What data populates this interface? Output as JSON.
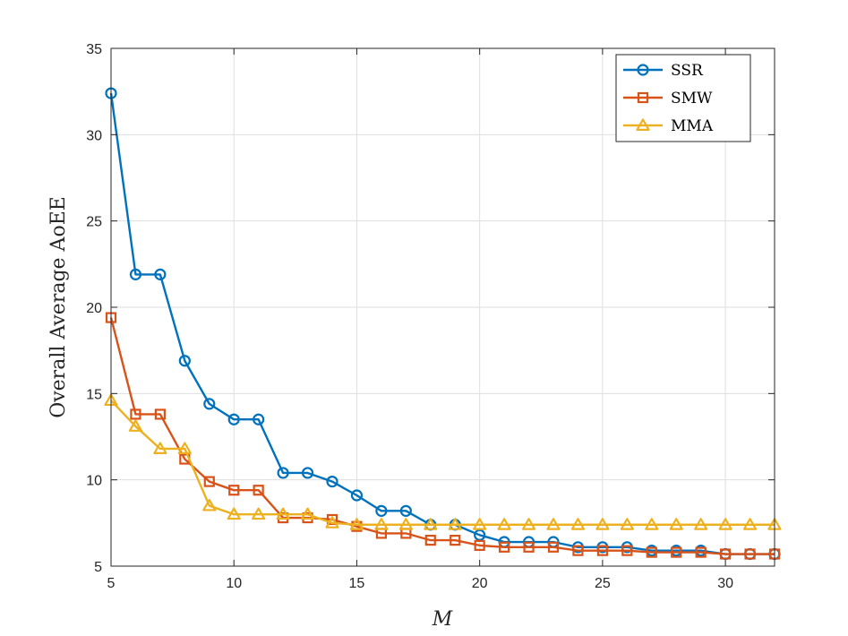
{
  "chart_data": {
    "type": "line",
    "title": "",
    "xlabel": "M",
    "ylabel": "Overall Average AoEE",
    "xlim": [
      5,
      32
    ],
    "ylim": [
      5,
      35
    ],
    "xticks": [
      5,
      10,
      15,
      20,
      25,
      30
    ],
    "yticks": [
      5,
      10,
      15,
      20,
      25,
      30,
      35
    ],
    "grid": true,
    "legend_position": "top-right",
    "x": [
      5,
      6,
      7,
      8,
      9,
      10,
      11,
      12,
      13,
      14,
      15,
      16,
      17,
      18,
      19,
      20,
      21,
      22,
      23,
      24,
      25,
      26,
      27,
      28,
      29,
      30,
      31,
      32
    ],
    "series": [
      {
        "name": "SSR",
        "color": "#0072BD",
        "marker": "circle",
        "values": [
          32.4,
          21.9,
          21.9,
          16.9,
          14.4,
          13.5,
          13.5,
          10.4,
          10.4,
          9.9,
          9.1,
          8.2,
          8.2,
          7.4,
          7.4,
          6.8,
          6.4,
          6.4,
          6.4,
          6.1,
          6.1,
          6.1,
          5.9,
          5.9,
          5.9,
          5.7,
          5.7,
          5.7
        ]
      },
      {
        "name": "SMW",
        "color": "#D95319",
        "marker": "square",
        "values": [
          19.4,
          13.8,
          13.8,
          11.2,
          9.9,
          9.4,
          9.4,
          7.8,
          7.8,
          7.7,
          7.3,
          6.9,
          6.9,
          6.5,
          6.5,
          6.2,
          6.1,
          6.1,
          6.1,
          5.9,
          5.9,
          5.9,
          5.8,
          5.8,
          5.8,
          5.7,
          5.7,
          5.7
        ]
      },
      {
        "name": "MMA",
        "color": "#EDB120",
        "marker": "triangle",
        "values": [
          14.6,
          13.1,
          11.8,
          11.8,
          8.5,
          8.0,
          8.0,
          8.0,
          8.0,
          7.5,
          7.4,
          7.4,
          7.4,
          7.4,
          7.4,
          7.4,
          7.4,
          7.4,
          7.4,
          7.4,
          7.4,
          7.4,
          7.4,
          7.4,
          7.4,
          7.4,
          7.4,
          7.4
        ]
      }
    ]
  }
}
